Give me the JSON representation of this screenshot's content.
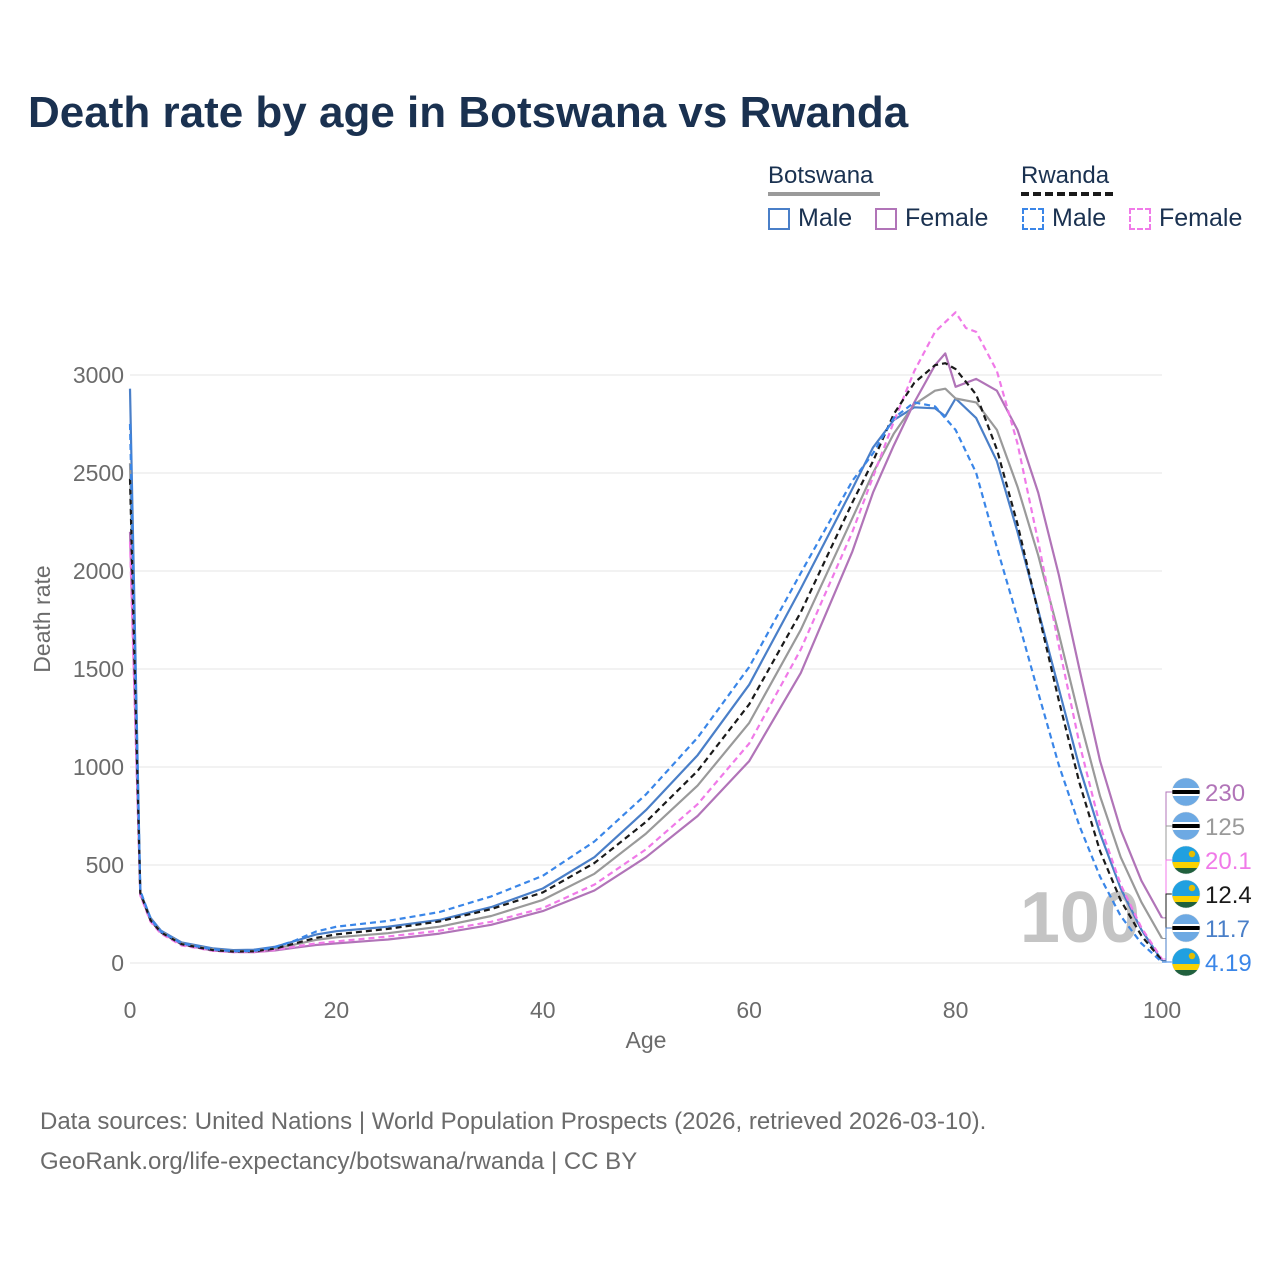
{
  "title": "Death rate by age in Botswana vs Rwanda",
  "legend": {
    "botswana": {
      "label": "Botswana",
      "male": "Male",
      "female": "Female"
    },
    "rwanda": {
      "label": "Rwanda",
      "male": "Male",
      "female": "Female"
    }
  },
  "colors": {
    "male": "#4a7fc8",
    "female": "#b174b8",
    "botswana_total": "#9a9a9a",
    "rwanda_male": "#3a86e8",
    "rwanda_female": "#f07ae8",
    "rwanda_total": "#1a1a1a",
    "grid": "#e6e6e6",
    "axis_text": "#6b6b6b"
  },
  "chart_data": {
    "type": "line",
    "xlabel": "Age",
    "ylabel": "Death rate",
    "xlim": [
      0,
      100
    ],
    "ylim": [
      0,
      3000
    ],
    "xticks": [
      "0",
      "20",
      "40",
      "60",
      "80",
      "100"
    ],
    "yticks": [
      "0",
      "500",
      "1000",
      "1500",
      "2000",
      "2500",
      "3000"
    ],
    "watermark": "100",
    "series": [
      {
        "name": "Botswana Male",
        "country": "Botswana",
        "sex": "Male",
        "style": "solid",
        "color": "#4a7fc8",
        "end_value": "11.7",
        "flag": "botswana",
        "points": [
          [
            0,
            2930
          ],
          [
            1,
            360
          ],
          [
            2,
            230
          ],
          [
            3,
            165
          ],
          [
            5,
            105
          ],
          [
            8,
            75
          ],
          [
            10,
            66
          ],
          [
            12,
            68
          ],
          [
            14,
            82
          ],
          [
            16,
            112
          ],
          [
            18,
            145
          ],
          [
            20,
            162
          ],
          [
            25,
            185
          ],
          [
            30,
            220
          ],
          [
            35,
            285
          ],
          [
            40,
            380
          ],
          [
            45,
            540
          ],
          [
            50,
            780
          ],
          [
            55,
            1060
          ],
          [
            60,
            1420
          ],
          [
            65,
            1910
          ],
          [
            70,
            2420
          ],
          [
            72,
            2630
          ],
          [
            74,
            2770
          ],
          [
            76,
            2835
          ],
          [
            78,
            2830
          ],
          [
            79,
            2790
          ],
          [
            80,
            2880
          ],
          [
            82,
            2780
          ],
          [
            84,
            2560
          ],
          [
            86,
            2200
          ],
          [
            88,
            1800
          ],
          [
            90,
            1400
          ],
          [
            92,
            1000
          ],
          [
            94,
            660
          ],
          [
            96,
            380
          ],
          [
            98,
            170
          ],
          [
            100,
            11.7
          ]
        ]
      },
      {
        "name": "Botswana Female",
        "country": "Botswana",
        "sex": "Female",
        "style": "solid",
        "color": "#b174b8",
        "end_value": "230",
        "flag": "botswana",
        "points": [
          [
            0,
            2200
          ],
          [
            1,
            350
          ],
          [
            2,
            215
          ],
          [
            3,
            155
          ],
          [
            5,
            95
          ],
          [
            8,
            64
          ],
          [
            10,
            56
          ],
          [
            12,
            55
          ],
          [
            14,
            64
          ],
          [
            16,
            78
          ],
          [
            18,
            92
          ],
          [
            20,
            100
          ],
          [
            25,
            120
          ],
          [
            30,
            150
          ],
          [
            35,
            195
          ],
          [
            40,
            265
          ],
          [
            45,
            370
          ],
          [
            50,
            540
          ],
          [
            55,
            750
          ],
          [
            60,
            1030
          ],
          [
            65,
            1480
          ],
          [
            70,
            2100
          ],
          [
            72,
            2400
          ],
          [
            74,
            2640
          ],
          [
            76,
            2860
          ],
          [
            78,
            3050
          ],
          [
            79,
            3110
          ],
          [
            80,
            2940
          ],
          [
            82,
            2980
          ],
          [
            84,
            2920
          ],
          [
            86,
            2720
          ],
          [
            88,
            2400
          ],
          [
            90,
            1980
          ],
          [
            92,
            1500
          ],
          [
            94,
            1030
          ],
          [
            96,
            680
          ],
          [
            98,
            420
          ],
          [
            100,
            230
          ]
        ]
      },
      {
        "name": "Botswana Total",
        "country": "Botswana",
        "sex": "Total",
        "style": "solid",
        "color": "#9a9a9a",
        "end_value": "125",
        "flag": "botswana",
        "points": [
          [
            0,
            2550
          ],
          [
            1,
            355
          ],
          [
            2,
            222
          ],
          [
            3,
            160
          ],
          [
            5,
            100
          ],
          [
            8,
            70
          ],
          [
            10,
            61
          ],
          [
            12,
            62
          ],
          [
            14,
            73
          ],
          [
            16,
            95
          ],
          [
            18,
            118
          ],
          [
            20,
            131
          ],
          [
            25,
            152
          ],
          [
            30,
            185
          ],
          [
            35,
            240
          ],
          [
            40,
            322
          ],
          [
            45,
            455
          ],
          [
            50,
            660
          ],
          [
            55,
            905
          ],
          [
            60,
            1225
          ],
          [
            65,
            1700
          ],
          [
            70,
            2270
          ],
          [
            72,
            2500
          ],
          [
            74,
            2700
          ],
          [
            76,
            2850
          ],
          [
            78,
            2920
          ],
          [
            79,
            2930
          ],
          [
            80,
            2880
          ],
          [
            82,
            2860
          ],
          [
            84,
            2720
          ],
          [
            86,
            2430
          ],
          [
            88,
            2080
          ],
          [
            90,
            1680
          ],
          [
            92,
            1250
          ],
          [
            94,
            850
          ],
          [
            96,
            540
          ],
          [
            98,
            310
          ],
          [
            100,
            125
          ]
        ]
      },
      {
        "name": "Rwanda Male",
        "country": "Rwanda",
        "sex": "Male",
        "style": "dashed",
        "color": "#3a86e8",
        "end_value": "4.19",
        "flag": "rwanda",
        "points": [
          [
            0,
            2750
          ],
          [
            1,
            370
          ],
          [
            2,
            225
          ],
          [
            3,
            160
          ],
          [
            5,
            100
          ],
          [
            8,
            70
          ],
          [
            10,
            60
          ],
          [
            12,
            62
          ],
          [
            14,
            80
          ],
          [
            16,
            115
          ],
          [
            18,
            160
          ],
          [
            20,
            185
          ],
          [
            25,
            215
          ],
          [
            30,
            260
          ],
          [
            35,
            340
          ],
          [
            40,
            445
          ],
          [
            45,
            620
          ],
          [
            50,
            860
          ],
          [
            55,
            1150
          ],
          [
            60,
            1510
          ],
          [
            65,
            1990
          ],
          [
            70,
            2460
          ],
          [
            72,
            2600
          ],
          [
            74,
            2780
          ],
          [
            76,
            2860
          ],
          [
            78,
            2840
          ],
          [
            80,
            2720
          ],
          [
            82,
            2500
          ],
          [
            84,
            2120
          ],
          [
            86,
            1760
          ],
          [
            88,
            1380
          ],
          [
            90,
            1010
          ],
          [
            92,
            700
          ],
          [
            94,
            440
          ],
          [
            96,
            240
          ],
          [
            98,
            100
          ],
          [
            100,
            4.19
          ]
        ]
      },
      {
        "name": "Rwanda Female",
        "country": "Rwanda",
        "sex": "Female",
        "style": "dashed",
        "color": "#f07ae8",
        "end_value": "20.1",
        "flag": "rwanda",
        "points": [
          [
            0,
            2150
          ],
          [
            1,
            345
          ],
          [
            2,
            210
          ],
          [
            3,
            150
          ],
          [
            5,
            90
          ],
          [
            8,
            62
          ],
          [
            10,
            55
          ],
          [
            12,
            56
          ],
          [
            14,
            66
          ],
          [
            16,
            84
          ],
          [
            18,
            100
          ],
          [
            20,
            110
          ],
          [
            25,
            135
          ],
          [
            30,
            165
          ],
          [
            35,
            210
          ],
          [
            40,
            280
          ],
          [
            45,
            400
          ],
          [
            50,
            580
          ],
          [
            55,
            810
          ],
          [
            60,
            1120
          ],
          [
            65,
            1600
          ],
          [
            70,
            2200
          ],
          [
            72,
            2480
          ],
          [
            74,
            2760
          ],
          [
            76,
            3020
          ],
          [
            78,
            3220
          ],
          [
            79,
            3270
          ],
          [
            80,
            3320
          ],
          [
            81,
            3240
          ],
          [
            82,
            3220
          ],
          [
            84,
            3020
          ],
          [
            86,
            2650
          ],
          [
            88,
            2150
          ],
          [
            90,
            1620
          ],
          [
            92,
            1120
          ],
          [
            94,
            700
          ],
          [
            96,
            400
          ],
          [
            98,
            180
          ],
          [
            100,
            20.1
          ]
        ]
      },
      {
        "name": "Rwanda Total",
        "country": "Rwanda",
        "sex": "Total",
        "style": "dashed",
        "color": "#1a1a1a",
        "end_value": "12.4",
        "flag": "rwanda",
        "points": [
          [
            0,
            2470
          ],
          [
            1,
            358
          ],
          [
            2,
            218
          ],
          [
            3,
            156
          ],
          [
            5,
            96
          ],
          [
            8,
            66
          ],
          [
            10,
            58
          ],
          [
            12,
            59
          ],
          [
            14,
            73
          ],
          [
            16,
            100
          ],
          [
            18,
            128
          ],
          [
            20,
            146
          ],
          [
            25,
            174
          ],
          [
            30,
            212
          ],
          [
            35,
            275
          ],
          [
            40,
            360
          ],
          [
            45,
            510
          ],
          [
            50,
            720
          ],
          [
            55,
            980
          ],
          [
            60,
            1320
          ],
          [
            65,
            1790
          ],
          [
            70,
            2350
          ],
          [
            72,
            2560
          ],
          [
            74,
            2800
          ],
          [
            76,
            2960
          ],
          [
            78,
            3050
          ],
          [
            79,
            3060
          ],
          [
            80,
            3030
          ],
          [
            82,
            2900
          ],
          [
            84,
            2620
          ],
          [
            86,
            2240
          ],
          [
            88,
            1790
          ],
          [
            90,
            1340
          ],
          [
            92,
            920
          ],
          [
            94,
            570
          ],
          [
            96,
            320
          ],
          [
            98,
            140
          ],
          [
            100,
            12.4
          ]
        ]
      }
    ],
    "end_labels_order": [
      "230",
      "125",
      "20.1",
      "12.4",
      "11.7",
      "4.19"
    ]
  },
  "footer": {
    "source": "Data sources: United Nations | World Population Prospects (2026, retrieved 2026-03-10).",
    "url": "GeoRank.org/life-expectancy/botswana/rwanda | CC BY"
  }
}
